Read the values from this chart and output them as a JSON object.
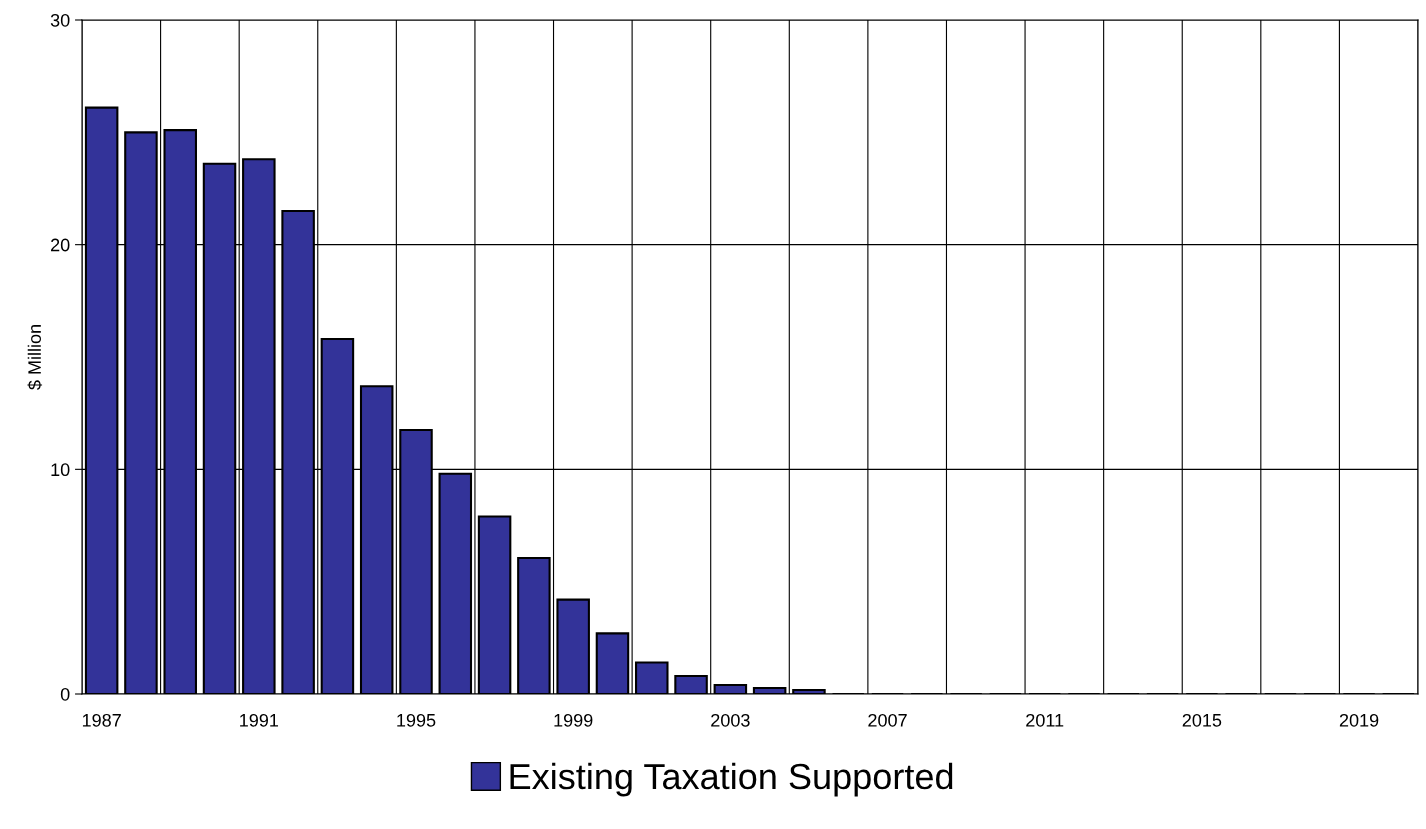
{
  "chart_data": {
    "type": "bar",
    "ylabel": "$ Million",
    "categories": [
      "1987",
      null,
      null,
      null,
      "1991",
      null,
      null,
      null,
      "1995",
      null,
      null,
      null,
      "1999",
      null,
      null,
      null,
      "2003",
      null,
      null,
      null,
      "2007",
      null,
      null,
      null,
      "2011",
      null,
      null,
      null,
      "2015",
      null,
      null,
      null,
      "2019",
      null
    ],
    "series": [
      {
        "name": "Existing Taxation Supported",
        "color": "#333399",
        "values": [
          26.1,
          25.0,
          25.1,
          23.6,
          23.8,
          21.5,
          15.8,
          13.7,
          11.75,
          9.8,
          7.9,
          6.05,
          4.2,
          2.7,
          1.4,
          0.8,
          0.4,
          0.27,
          0.18,
          0,
          0,
          0,
          0,
          0,
          0,
          0,
          0,
          0,
          0,
          0,
          0,
          0,
          0,
          0
        ]
      }
    ],
    "ylim": [
      0,
      30
    ],
    "yticks": [
      0,
      10,
      20,
      30
    ],
    "grid": true,
    "legend": "bottom"
  }
}
